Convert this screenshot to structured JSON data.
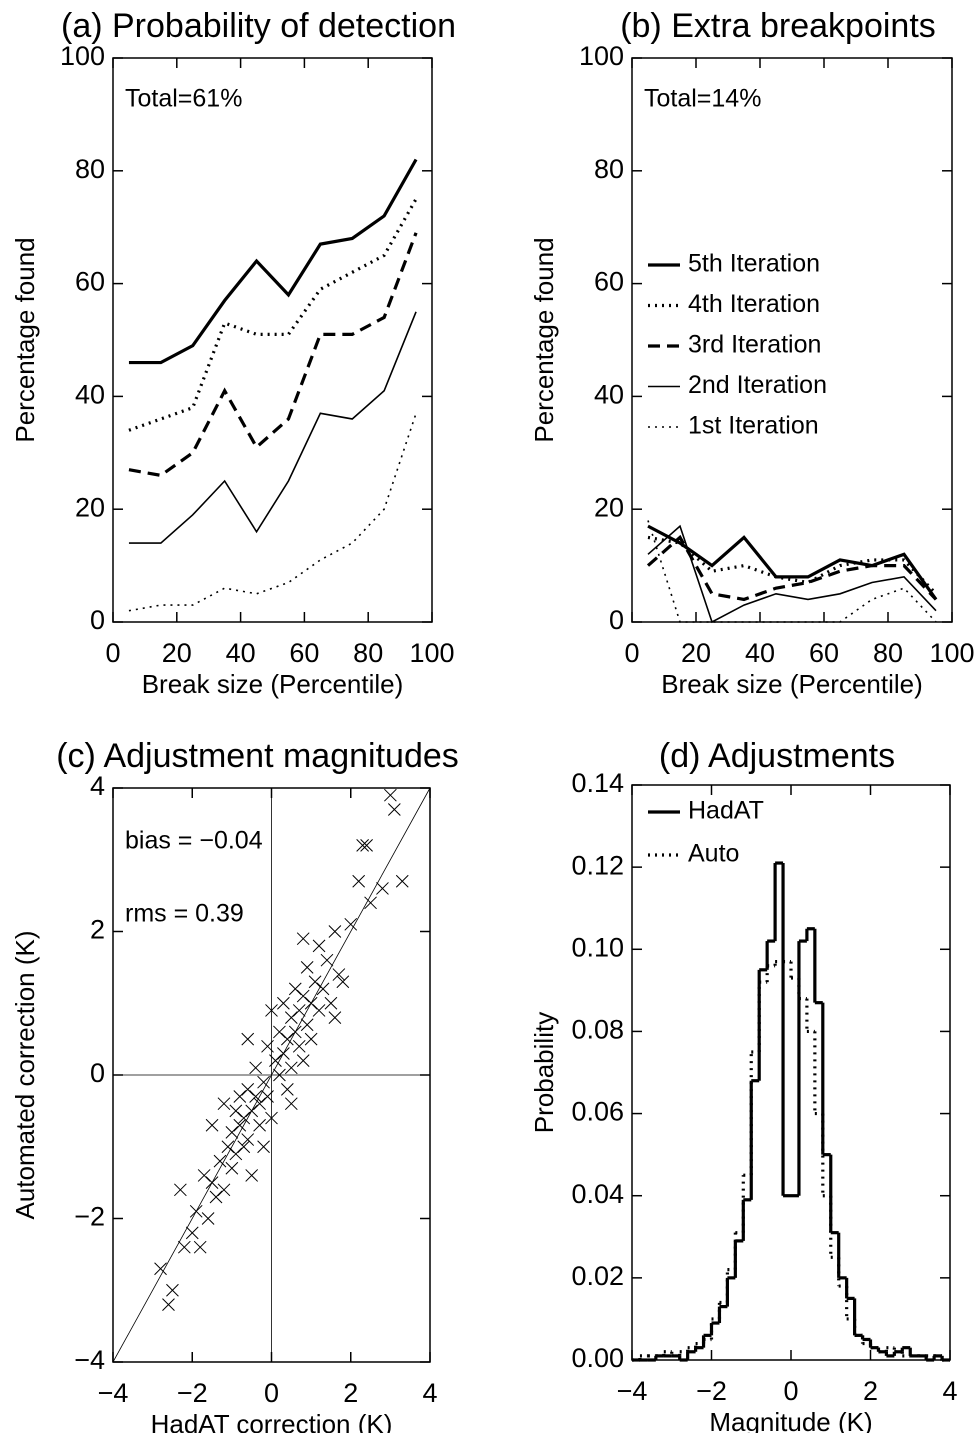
{
  "chart_data": [
    {
      "type": "line",
      "title": "(a) Probability of detection",
      "x_label": "Break size (Percentile)",
      "y_label": "Percentage found",
      "annotations": [
        "Total=61%"
      ],
      "x": [
        5,
        15,
        25,
        35,
        45,
        55,
        65,
        75,
        85,
        95
      ],
      "xlim": [
        0,
        100
      ],
      "ylim": [
        0,
        100
      ],
      "xticks": [
        0,
        20,
        40,
        60,
        80,
        100
      ],
      "yticks": [
        0,
        20,
        40,
        60,
        80,
        100
      ],
      "series": [
        {
          "color": "#000000",
          "line_style": "solid",
          "line_width": "thick",
          "values": [
            46,
            46,
            49,
            57,
            64,
            58,
            67,
            68,
            72,
            82
          ]
        },
        {
          "color": "#000000",
          "line_style": "dotted",
          "line_width": "thick",
          "values": [
            34,
            36,
            38,
            53,
            51,
            51,
            59,
            62,
            65,
            75
          ]
        },
        {
          "color": "#000000",
          "line_style": "dashed",
          "line_width": "thick",
          "values": [
            27,
            26,
            30,
            41,
            31,
            36,
            51,
            51,
            54,
            69
          ]
        },
        {
          "color": "#000000",
          "line_style": "solid",
          "line_width": "thin",
          "values": [
            14,
            14,
            19,
            25,
            16,
            25,
            37,
            36,
            41,
            55
          ]
        },
        {
          "color": "#000000",
          "line_style": "dotted",
          "line_width": "thin",
          "values": [
            2,
            3,
            3,
            6,
            5,
            7,
            11,
            14,
            20,
            37
          ]
        }
      ]
    },
    {
      "type": "line",
      "title": "(b) Extra breakpoints",
      "x_label": "Break size (Percentile)",
      "y_label": "Percentage found",
      "annotations": [
        "Total=14%"
      ],
      "legend_position": "center left",
      "x": [
        5,
        15,
        25,
        35,
        45,
        55,
        65,
        75,
        85,
        95
      ],
      "xlim": [
        0,
        100
      ],
      "ylim": [
        0,
        100
      ],
      "xticks": [
        0,
        20,
        40,
        60,
        80,
        100
      ],
      "yticks": [
        0,
        20,
        40,
        60,
        80,
        100
      ],
      "series": [
        {
          "name": "5th Iteration",
          "color": "#000000",
          "line_style": "solid",
          "line_width": "thick",
          "values": [
            17,
            14,
            10,
            15,
            8,
            8,
            11,
            10,
            12,
            4
          ]
        },
        {
          "name": "4th Iteration",
          "color": "#000000",
          "line_style": "dotted",
          "line_width": "thick",
          "values": [
            15,
            14,
            9,
            10,
            8,
            7,
            10,
            11,
            11,
            5
          ]
        },
        {
          "name": "3rd Iteration",
          "color": "#000000",
          "line_style": "dashed",
          "line_width": "thick",
          "values": [
            10,
            15,
            5,
            4,
            6,
            7,
            9,
            10,
            10,
            4
          ]
        },
        {
          "name": "2nd Iteration",
          "color": "#000000",
          "line_style": "solid",
          "line_width": "thin",
          "values": [
            12,
            17,
            0,
            3,
            5,
            4,
            5,
            7,
            8,
            2
          ]
        },
        {
          "name": "1st Iteration",
          "color": "#000000",
          "line_style": "dotted",
          "line_width": "thin",
          "values": [
            18,
            0,
            0,
            0,
            0,
            0,
            0,
            4,
            6,
            0
          ]
        }
      ]
    },
    {
      "type": "scatter",
      "title": "(c) Adjustment magnitudes",
      "x_label": "HadAT correction (K)",
      "y_label": "Automated correction (K)",
      "annotations": [
        "bias = −0.04",
        "rms = 0.39"
      ],
      "color": "#000000",
      "xlim": [
        -4,
        4
      ],
      "ylim": [
        -4,
        4
      ],
      "xticks": [
        {
          "value": -4,
          "label": "−4"
        },
        {
          "value": -2,
          "label": "−2"
        },
        0,
        2,
        4
      ],
      "yticks": [
        {
          "value": -4,
          "label": "−4"
        },
        {
          "value": -2,
          "label": "−2"
        },
        0,
        2,
        4
      ],
      "x": [
        -2.6,
        -2.5,
        -2.8,
        -2.2,
        -2.0,
        -1.8,
        -1.9,
        -1.6,
        -1.5,
        -1.7,
        -1.4,
        -1.3,
        -1.2,
        -1.1,
        -1.0,
        -1.0,
        -0.9,
        -0.9,
        -0.8,
        -0.8,
        -0.7,
        -0.7,
        -0.6,
        -0.6,
        -0.5,
        -0.5,
        -0.4,
        -0.4,
        -0.3,
        -0.3,
        -0.2,
        -0.2,
        -0.1,
        -0.1,
        0.0,
        0.1,
        0.2,
        0.2,
        0.3,
        0.3,
        0.4,
        0.4,
        0.5,
        0.5,
        0.6,
        0.6,
        0.7,
        0.7,
        0.8,
        0.8,
        0.9,
        0.9,
        1.0,
        1.0,
        1.1,
        1.2,
        1.2,
        1.3,
        1.4,
        1.5,
        1.6,
        1.7,
        1.8,
        2.0,
        2.2,
        2.3,
        2.4,
        2.5,
        2.8,
        3.0,
        3.1,
        3.3,
        -1.2,
        -0.6,
        0.5,
        1.6,
        -2.3,
        -1.5,
        0.0,
        0.8
      ],
      "y": [
        -3.2,
        -3.0,
        -2.7,
        -2.4,
        -2.2,
        -2.4,
        -1.9,
        -2.0,
        -1.5,
        -1.4,
        -1.7,
        -1.2,
        -1.6,
        -1.0,
        -1.3,
        -0.8,
        -0.5,
        -1.1,
        -0.7,
        -0.3,
        -1.0,
        -0.6,
        -0.2,
        -0.9,
        -0.5,
        -1.4,
        -0.3,
        0.1,
        -0.7,
        -0.4,
        -0.1,
        -1.0,
        0.4,
        -0.3,
        -0.6,
        0.2,
        0.0,
        0.6,
        0.3,
        1.0,
        0.5,
        -0.2,
        0.8,
        0.1,
        0.6,
        1.2,
        0.4,
        0.9,
        1.1,
        0.2,
        0.7,
        1.5,
        1.0,
        0.5,
        1.3,
        0.9,
        1.8,
        1.2,
        1.6,
        1.0,
        2.0,
        1.4,
        1.3,
        2.1,
        2.7,
        3.2,
        3.2,
        2.4,
        2.6,
        3.9,
        3.7,
        2.7,
        -0.4,
        0.5,
        -0.4,
        0.8,
        -1.6,
        -0.7,
        0.9,
        1.9
      ]
    },
    {
      "type": "histogram",
      "title": "(d) Adjustments",
      "x_label": "Magnitude (K)",
      "y_label": "Probability",
      "legend_position": "upper left",
      "xlim": [
        -4,
        4
      ],
      "ylim": [
        0,
        0.14
      ],
      "xticks": [
        {
          "value": -4,
          "label": "−4"
        },
        {
          "value": -2,
          "label": "−2"
        },
        0,
        2,
        4
      ],
      "yticks": [
        {
          "value": 0,
          "label": "0.00"
        },
        {
          "value": 0.02,
          "label": "0.02"
        },
        {
          "value": 0.04,
          "label": "0.04"
        },
        {
          "value": 0.06,
          "label": "0.06"
        },
        {
          "value": 0.08,
          "label": "0.08"
        },
        {
          "value": 0.1,
          "label": "0.10"
        },
        {
          "value": 0.12,
          "label": "0.12"
        },
        {
          "value": 0.14,
          "label": "0.14"
        }
      ],
      "bins": [
        -4.0,
        -3.8,
        -3.6,
        -3.4,
        -3.2,
        -3.0,
        -2.8,
        -2.6,
        -2.4,
        -2.2,
        -2.0,
        -1.8,
        -1.6,
        -1.4,
        -1.2,
        -1.0,
        -0.8,
        -0.6,
        -0.4,
        -0.2,
        0.0,
        0.2,
        0.4,
        0.6,
        0.8,
        1.0,
        1.2,
        1.4,
        1.6,
        1.8,
        2.0,
        2.2,
        2.4,
        2.6,
        2.8,
        3.0,
        3.2,
        3.4,
        3.6,
        3.8,
        4.0
      ],
      "series": [
        {
          "name": "HadAT",
          "color": "#000000",
          "line_style": "solid",
          "line_width": "thick",
          "values": [
            0.0,
            0.0,
            0.0,
            0.001,
            0.001,
            0.001,
            0.0,
            0.002,
            0.003,
            0.006,
            0.009,
            0.013,
            0.02,
            0.029,
            0.039,
            0.068,
            0.095,
            0.102,
            0.121,
            0.04,
            0.04,
            0.102,
            0.105,
            0.087,
            0.05,
            0.031,
            0.02,
            0.015,
            0.006,
            0.005,
            0.003,
            0.002,
            0.001,
            0.002,
            0.003,
            0.001,
            0.001,
            0.0,
            0.001,
            0.0
          ]
        },
        {
          "name": "Auto",
          "color": "#000000",
          "line_style": "dotted",
          "line_width": "thick",
          "values": [
            0.0,
            0.001,
            0.001,
            0.001,
            0.002,
            0.001,
            0.002,
            0.003,
            0.004,
            0.005,
            0.01,
            0.014,
            0.022,
            0.031,
            0.045,
            0.075,
            0.092,
            0.096,
            0.097,
            0.097,
            0.093,
            0.088,
            0.08,
            0.06,
            0.04,
            0.025,
            0.018,
            0.01,
            0.006,
            0.004,
            0.003,
            0.002,
            0.003,
            0.002,
            0.001,
            0.001,
            0.001,
            0.001,
            0.001,
            0.0
          ]
        }
      ]
    }
  ]
}
